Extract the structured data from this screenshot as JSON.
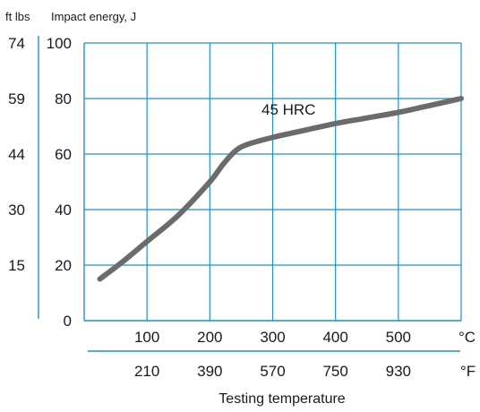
{
  "chart_data": {
    "type": "line",
    "title": "",
    "ylabel": "Impact energy, J",
    "ylabel_secondary": "ft lbs",
    "xlabel": "Testing temperature",
    "x_unit_primary": "°C",
    "x_unit_secondary": "°F",
    "xlim": [
      0,
      600
    ],
    "ylim": [
      0,
      100
    ],
    "grid": true,
    "x_ticks_primary": [
      {
        "value": 100,
        "label": "100"
      },
      {
        "value": 200,
        "label": "200"
      },
      {
        "value": 300,
        "label": "300"
      },
      {
        "value": 400,
        "label": "400"
      },
      {
        "value": 500,
        "label": "500"
      }
    ],
    "x_ticks_secondary": [
      {
        "value": 100,
        "label": "210"
      },
      {
        "value": 200,
        "label": "390"
      },
      {
        "value": 300,
        "label": "570"
      },
      {
        "value": 400,
        "label": "750"
      },
      {
        "value": 500,
        "label": "930"
      }
    ],
    "y_ticks_primary": [
      {
        "value": 0,
        "label": "0"
      },
      {
        "value": 20,
        "label": "20"
      },
      {
        "value": 40,
        "label": "40"
      },
      {
        "value": 60,
        "label": "60"
      },
      {
        "value": 80,
        "label": "80"
      },
      {
        "value": 100,
        "label": "100"
      }
    ],
    "y_ticks_secondary": [
      {
        "value": 20,
        "label": "15"
      },
      {
        "value": 40,
        "label": "30"
      },
      {
        "value": 60,
        "label": "44"
      },
      {
        "value": 80,
        "label": "59"
      },
      {
        "value": 100,
        "label": "74"
      }
    ],
    "series": [
      {
        "name": "45 HRC",
        "color": "#6b6b6b",
        "x": [
          25,
          60,
          100,
          150,
          200,
          220,
          240,
          260,
          300,
          350,
          400,
          450,
          500,
          550,
          600
        ],
        "y": [
          15,
          21,
          28.5,
          38,
          50,
          56,
          61,
          63.5,
          66,
          68.5,
          71,
          73,
          75,
          77.5,
          80
        ]
      }
    ],
    "colors": {
      "grid": "#1e90d0",
      "line": "#6b6b6b"
    }
  }
}
